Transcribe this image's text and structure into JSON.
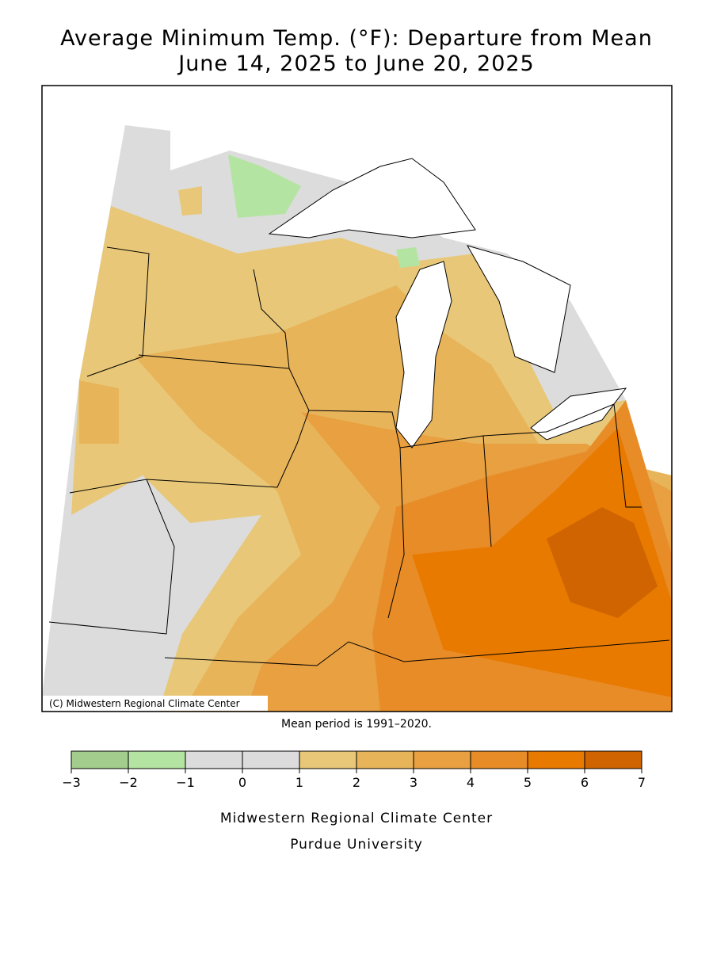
{
  "title": [
    "Average Minimum Temp. (°F): Departure from Mean",
    "June 14, 2025 to June 20, 2025"
  ],
  "map": {
    "credit": "(C) Midwestern Regional Climate Center"
  },
  "note": "Mean period is 1991–2020.",
  "legend": {
    "colors": [
      "#a3cd8c",
      "#b4e4a2",
      "#dcdcdc",
      "#dcdcdc",
      "#e8c878",
      "#e8b45a",
      "#e8a040",
      "#e88c28",
      "#e87a00",
      "#d06400"
    ],
    "ticks": [
      {
        "value": -3,
        "label": "−3"
      },
      {
        "value": -2,
        "label": "−2"
      },
      {
        "value": -1,
        "label": "−1"
      },
      0,
      1,
      2,
      3,
      4,
      5,
      6,
      7
    ]
  },
  "footer": [
    "Midwestern Regional Climate Center",
    "Purdue University"
  ]
}
